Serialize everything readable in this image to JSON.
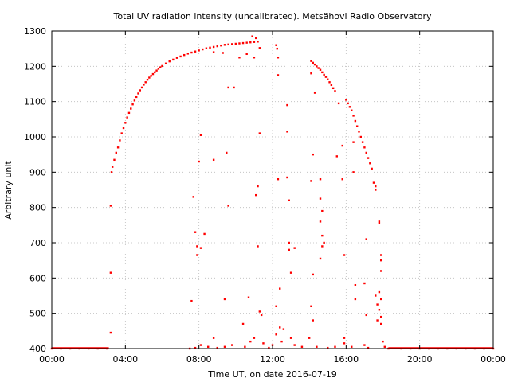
{
  "chart_data": {
    "type": "scatter",
    "title": "Total UV radiation intensity (uncalibrated). Metsähovi Radio Observatory",
    "xlabel": "Time UT, on date 2016-07-19",
    "ylabel": "Arbitrary unit",
    "xlim": [
      0,
      24
    ],
    "ylim": [
      400,
      1300
    ],
    "x_ticks": [
      0,
      4,
      8,
      12,
      16,
      20,
      24
    ],
    "x_tick_labels": [
      "00:00",
      "04:00",
      "08:00",
      "12:00",
      "16:00",
      "20:00",
      "00:00"
    ],
    "y_ticks": [
      400,
      500,
      600,
      700,
      800,
      900,
      1000,
      1100,
      1200,
      1300
    ],
    "y_tick_labels": [
      "400",
      "500",
      "600",
      "700",
      "800",
      "900",
      "1000",
      "1100",
      "1200",
      "1300"
    ],
    "grid": true,
    "marker_color": "#ff0000",
    "series": [
      {
        "points": [
          [
            0.0,
            400
          ],
          [
            0.5,
            400
          ],
          [
            1.0,
            400
          ],
          [
            1.5,
            400
          ],
          [
            2.0,
            400
          ],
          [
            2.5,
            400
          ],
          [
            3.0,
            400
          ],
          [
            3.2,
            445
          ],
          [
            3.2,
            615
          ],
          [
            3.2,
            805
          ],
          [
            3.25,
            900
          ],
          [
            3.3,
            915
          ],
          [
            3.4,
            935
          ],
          [
            3.5,
            955
          ],
          [
            3.6,
            970
          ],
          [
            3.7,
            990
          ],
          [
            3.8,
            1010
          ],
          [
            3.9,
            1025
          ],
          [
            4.0,
            1040
          ],
          [
            4.1,
            1055
          ],
          [
            4.2,
            1068
          ],
          [
            4.3,
            1080
          ],
          [
            4.4,
            1092
          ],
          [
            4.5,
            1103
          ],
          [
            4.6,
            1113
          ],
          [
            4.7,
            1123
          ],
          [
            4.8,
            1132
          ],
          [
            4.9,
            1140
          ],
          [
            5.0,
            1148
          ],
          [
            5.1,
            1155
          ],
          [
            5.2,
            1162
          ],
          [
            5.3,
            1168
          ],
          [
            5.4,
            1173
          ],
          [
            5.5,
            1178
          ],
          [
            5.6,
            1183
          ],
          [
            5.7,
            1188
          ],
          [
            5.8,
            1193
          ],
          [
            5.9,
            1197
          ],
          [
            6.0,
            1201
          ],
          [
            6.2,
            1208
          ],
          [
            6.4,
            1214
          ],
          [
            6.6,
            1219
          ],
          [
            6.8,
            1224
          ],
          [
            7.0,
            1228
          ],
          [
            7.2,
            1232
          ],
          [
            7.4,
            1236
          ],
          [
            7.6,
            1239
          ],
          [
            7.8,
            1242
          ],
          [
            8.0,
            1245
          ],
          [
            8.2,
            1248
          ],
          [
            8.4,
            1251
          ],
          [
            8.6,
            1253
          ],
          [
            8.8,
            1255
          ],
          [
            9.0,
            1257
          ],
          [
            9.2,
            1259
          ],
          [
            9.4,
            1261
          ],
          [
            9.6,
            1262
          ],
          [
            9.8,
            1263
          ],
          [
            10.0,
            1264
          ],
          [
            10.2,
            1265
          ],
          [
            10.4,
            1266
          ],
          [
            10.6,
            1267
          ],
          [
            10.8,
            1268
          ],
          [
            11.0,
            1269
          ],
          [
            11.2,
            1270
          ],
          [
            8.8,
            1240
          ],
          [
            9.3,
            1238
          ],
          [
            10.2,
            1225
          ],
          [
            10.6,
            1235
          ],
          [
            11.0,
            1225
          ],
          [
            11.3,
            1252
          ],
          [
            10.9,
            1285
          ],
          [
            11.1,
            1280
          ],
          [
            7.6,
            535
          ],
          [
            7.7,
            830
          ],
          [
            7.8,
            730
          ],
          [
            7.9,
            690
          ],
          [
            7.9,
            665
          ],
          [
            8.0,
            930
          ],
          [
            8.1,
            1005
          ],
          [
            8.1,
            685
          ],
          [
            8.3,
            725
          ],
          [
            8.8,
            935
          ],
          [
            9.5,
            955
          ],
          [
            9.6,
            805
          ],
          [
            9.6,
            1140
          ],
          [
            9.9,
            1140
          ],
          [
            9.4,
            540
          ],
          [
            10.4,
            470
          ],
          [
            10.7,
            545
          ],
          [
            11.1,
            835
          ],
          [
            11.2,
            860
          ],
          [
            11.2,
            690
          ],
          [
            11.3,
            1010
          ],
          [
            11.3,
            505
          ],
          [
            11.4,
            495
          ],
          [
            12.2,
            1260
          ],
          [
            12.25,
            1250
          ],
          [
            12.3,
            1225
          ],
          [
            12.3,
            1175
          ],
          [
            12.3,
            880
          ],
          [
            12.4,
            570
          ],
          [
            12.2,
            520
          ],
          [
            12.4,
            460
          ],
          [
            12.8,
            1090
          ],
          [
            12.8,
            1015
          ],
          [
            12.8,
            885
          ],
          [
            12.9,
            820
          ],
          [
            12.9,
            700
          ],
          [
            12.9,
            680
          ],
          [
            13.0,
            615
          ],
          [
            13.2,
            685
          ],
          [
            14.1,
            1215
          ],
          [
            14.2,
            1210
          ],
          [
            14.3,
            1205
          ],
          [
            14.4,
            1200
          ],
          [
            14.5,
            1195
          ],
          [
            14.6,
            1190
          ],
          [
            14.7,
            1183
          ],
          [
            14.8,
            1176
          ],
          [
            14.9,
            1170
          ],
          [
            15.0,
            1163
          ],
          [
            15.1,
            1155
          ],
          [
            15.2,
            1147
          ],
          [
            15.3,
            1138
          ],
          [
            15.4,
            1130
          ],
          [
            14.1,
            1180
          ],
          [
            14.2,
            950
          ],
          [
            14.3,
            1125
          ],
          [
            14.1,
            875
          ],
          [
            14.2,
            610
          ],
          [
            14.1,
            520
          ],
          [
            14.2,
            480
          ],
          [
            14.6,
            880
          ],
          [
            14.6,
            825
          ],
          [
            14.7,
            790
          ],
          [
            14.6,
            760
          ],
          [
            14.7,
            720
          ],
          [
            14.8,
            700
          ],
          [
            14.7,
            690
          ],
          [
            14.6,
            655
          ],
          [
            15.5,
            945
          ],
          [
            15.6,
            1095
          ],
          [
            15.8,
            975
          ],
          [
            15.8,
            880
          ],
          [
            15.9,
            665
          ],
          [
            15.9,
            430
          ],
          [
            16.0,
            1105
          ],
          [
            16.1,
            1095
          ],
          [
            16.2,
            1085
          ],
          [
            16.3,
            1075
          ],
          [
            16.4,
            1060
          ],
          [
            16.5,
            1045
          ],
          [
            16.6,
            1030
          ],
          [
            16.7,
            1015
          ],
          [
            16.8,
            1000
          ],
          [
            16.9,
            985
          ],
          [
            17.0,
            970
          ],
          [
            17.1,
            955
          ],
          [
            17.2,
            940
          ],
          [
            17.3,
            925
          ],
          [
            17.4,
            910
          ],
          [
            16.4,
            985
          ],
          [
            16.4,
            900
          ],
          [
            16.5,
            580
          ],
          [
            16.5,
            540
          ],
          [
            17.0,
            585
          ],
          [
            17.1,
            710
          ],
          [
            17.1,
            495
          ],
          [
            17.5,
            870
          ],
          [
            17.6,
            860
          ],
          [
            17.6,
            850
          ],
          [
            17.6,
            550
          ],
          [
            17.7,
            525
          ],
          [
            17.7,
            480
          ],
          [
            17.8,
            755
          ],
          [
            17.8,
            760
          ],
          [
            17.9,
            665
          ],
          [
            17.9,
            650
          ],
          [
            17.9,
            620
          ],
          [
            17.8,
            560
          ],
          [
            17.9,
            540
          ],
          [
            17.8,
            510
          ],
          [
            17.9,
            490
          ],
          [
            17.9,
            470
          ],
          [
            18.0,
            420
          ],
          [
            18.1,
            405
          ],
          [
            7.5,
            400
          ],
          [
            7.8,
            402
          ],
          [
            8.1,
            410
          ],
          [
            8.5,
            405
          ],
          [
            8.8,
            430
          ],
          [
            9.0,
            402
          ],
          [
            9.4,
            405
          ],
          [
            9.8,
            410
          ],
          [
            10.5,
            405
          ],
          [
            10.8,
            420
          ],
          [
            11.0,
            430
          ],
          [
            11.5,
            415
          ],
          [
            11.8,
            402
          ],
          [
            12.0,
            410
          ],
          [
            12.2,
            440
          ],
          [
            12.5,
            420
          ],
          [
            12.6,
            455
          ],
          [
            13.0,
            430
          ],
          [
            13.2,
            410
          ],
          [
            13.6,
            405
          ],
          [
            14.0,
            430
          ],
          [
            14.4,
            405
          ],
          [
            15.0,
            402
          ],
          [
            15.4,
            405
          ],
          [
            15.9,
            415
          ],
          [
            16.3,
            405
          ],
          [
            17.0,
            410
          ],
          [
            17.2,
            402
          ],
          [
            18.3,
            400
          ],
          [
            19.0,
            400
          ],
          [
            19.5,
            400
          ],
          [
            20.0,
            400
          ],
          [
            20.5,
            400
          ],
          [
            21.0,
            400
          ],
          [
            21.5,
            400
          ],
          [
            22.0,
            400
          ],
          [
            22.5,
            400
          ],
          [
            23.0,
            400
          ],
          [
            23.5,
            400
          ],
          [
            24.0,
            400
          ]
        ]
      }
    ]
  }
}
